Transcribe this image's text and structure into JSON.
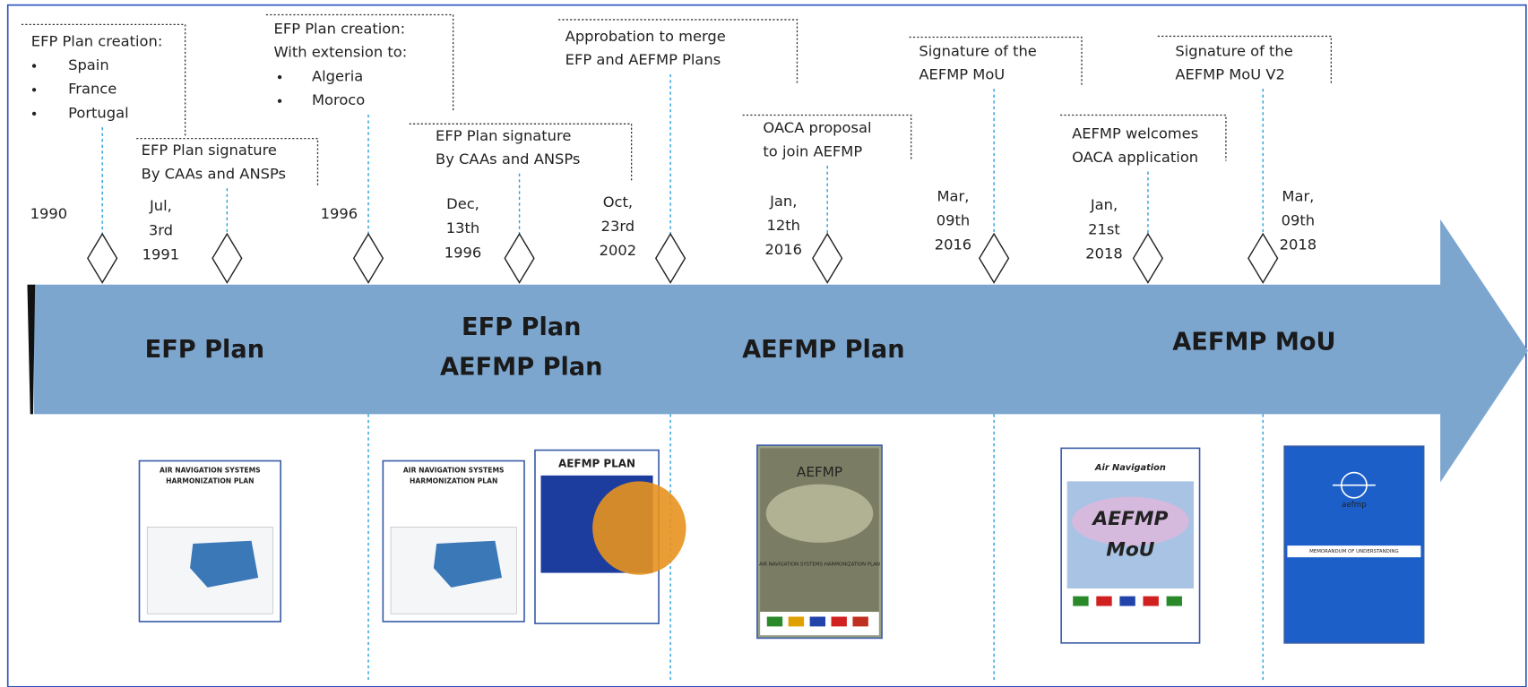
{
  "events": [
    {
      "date": [
        "1990"
      ],
      "label": [
        "EFP Plan creation:"
      ],
      "bullets": [
        "Spain",
        "France",
        "Portugal"
      ]
    },
    {
      "date": [
        "Jul,",
        "3rd",
        "1991"
      ],
      "label": [
        "EFP Plan signature",
        "By CAAs and ANSPs"
      ]
    },
    {
      "date": [
        "1996"
      ],
      "label": [
        "EFP Plan creation:",
        "With extension to:"
      ],
      "bullets": [
        "Algeria",
        "Moroco"
      ]
    },
    {
      "date": [
        "Dec,",
        "13th",
        "1996"
      ],
      "label": [
        "EFP Plan signature",
        "By CAAs and ANSPs"
      ]
    },
    {
      "date": [
        "Oct,",
        "23rd",
        "2002"
      ],
      "label": [
        "Approbation to merge",
        "EFP and AEFMP Plans"
      ]
    },
    {
      "date": [
        "Jan,",
        "12th",
        "2016"
      ],
      "label": [
        "OACA proposal",
        "to join AEFMP"
      ]
    },
    {
      "date": [
        "Mar,",
        "09th",
        "2016"
      ],
      "label": [
        "Signature of the",
        "AEFMP MoU"
      ]
    },
    {
      "date": [
        "Jan,",
        "21st",
        "2018"
      ],
      "label": [
        "AEFMP welcomes",
        "OACA application"
      ]
    },
    {
      "date": [
        "Mar,",
        "09th",
        "2018"
      ],
      "label": [
        "Signature of the",
        "AEFMP MoU V2"
      ]
    }
  ],
  "phases": [
    [
      "EFP Plan"
    ],
    [
      "EFP Plan",
      "AEFMP Plan"
    ],
    [
      "AEFMP Plan"
    ],
    [
      "AEFMP MoU"
    ]
  ],
  "documents": [
    {
      "title": [
        "AIR NAVIGATION SYSTEMS",
        "HARMONIZATION PLAN"
      ]
    },
    {
      "title": [
        "AIR NAVIGATION SYSTEMS",
        "HARMONIZATION PLAN"
      ]
    },
    {
      "title": [
        "AEFMP PLAN"
      ]
    },
    {
      "title": [
        "AEFMP",
        "AIR NAVIGATION SYSTEMS HARMONIZATION PLAN"
      ]
    },
    {
      "title": [
        "Air Navigation",
        "AEFMP",
        "MoU"
      ]
    },
    {
      "title": [
        "aefmp",
        "MEMORANDUM OF UNDERSTANDING"
      ]
    }
  ]
}
